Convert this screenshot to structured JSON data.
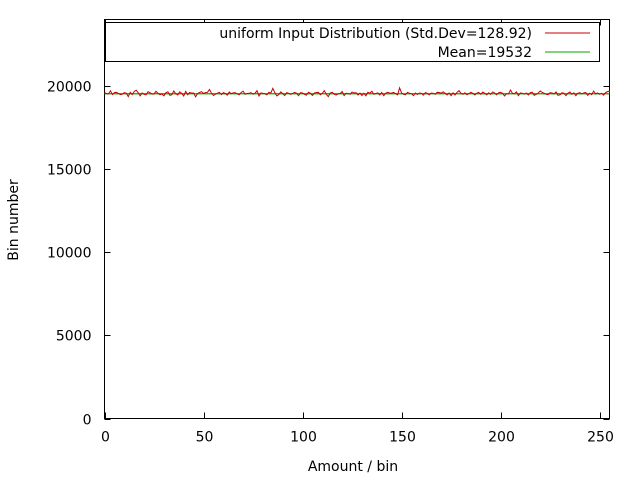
{
  "chart_data": {
    "type": "line",
    "title": "",
    "xlabel": "Amount / bin",
    "ylabel": "Bin number",
    "xlim": [
      0,
      255
    ],
    "ylim": [
      0,
      24000
    ],
    "x_ticks": [
      0,
      50,
      100,
      150,
      200,
      250
    ],
    "y_ticks": [
      0,
      5000,
      10000,
      15000,
      20000
    ],
    "x_tick_labels": [
      "0",
      "50",
      "100",
      "150",
      "200",
      "250"
    ],
    "y_tick_labels": [
      "0",
      "5000",
      "10000",
      "15000",
      "20000"
    ],
    "grid": false,
    "legend_position": "top",
    "series": [
      {
        "name": "uniform Input Distribution (Std.Dev=128.92)",
        "color": "#cc0000",
        "values": [
          19605,
          19540,
          19520,
          19710,
          19490,
          19600,
          19620,
          19550,
          19480,
          19510,
          19600,
          19570,
          19360,
          19620,
          19480,
          19660,
          19750,
          19600,
          19410,
          19580,
          19500,
          19470,
          19660,
          19590,
          19510,
          19520,
          19680,
          19560,
          19480,
          19520,
          19410,
          19590,
          19650,
          19440,
          19470,
          19700,
          19530,
          19460,
          19650,
          19550,
          19400,
          19680,
          19470,
          19610,
          19570,
          19580,
          19350,
          19550,
          19610,
          19660,
          19550,
          19600,
          19620,
          19790,
          19570,
          19430,
          19510,
          19570,
          19620,
          19480,
          19600,
          19550,
          19450,
          19640,
          19540,
          19590,
          19600,
          19520,
          19470,
          19610,
          19690,
          19500,
          19550,
          19560,
          19600,
          19510,
          19560,
          19720,
          19400,
          19580,
          19560,
          19540,
          19470,
          19620,
          19580,
          19860,
          19600,
          19400,
          19480,
          19650,
          19540,
          19420,
          19600,
          19560,
          19500,
          19550,
          19610,
          19560,
          19420,
          19600,
          19580,
          19490,
          19450,
          19620,
          19560,
          19430,
          19580,
          19600,
          19620,
          19470,
          19560,
          19720,
          19500,
          19360,
          19580,
          19620,
          19500,
          19460,
          19530,
          19540,
          19670,
          19420,
          19560,
          19550,
          19500,
          19640,
          19580,
          19600,
          19460,
          19570,
          19430,
          19560,
          19410,
          19620,
          19570,
          19680,
          19500,
          19550,
          19580,
          19460,
          19610,
          19420,
          19560,
          19620,
          19570,
          19570,
          19610,
          19540,
          19470,
          19890,
          19580,
          19500,
          19470,
          19620,
          19560,
          19530,
          19420,
          19580,
          19490,
          19580,
          19560,
          19450,
          19600,
          19550,
          19470,
          19580,
          19560,
          19500,
          19620,
          19610,
          19570,
          19650,
          19560,
          19460,
          19580,
          19420,
          19590,
          19460,
          19610,
          19720,
          19560,
          19500,
          19590,
          19480,
          19540,
          19620,
          19560,
          19460,
          19570,
          19610,
          19500,
          19640,
          19560,
          19470,
          19590,
          19500,
          19640,
          19580,
          19470,
          19590,
          19620,
          19560,
          19400,
          19540,
          19520,
          19760,
          19560,
          19530,
          19650,
          19420,
          19580,
          19560,
          19510,
          19580,
          19460,
          19600,
          19630,
          19440,
          19500,
          19580,
          19700,
          19620,
          19560,
          19500,
          19480,
          19600,
          19580,
          19520,
          19640,
          19440,
          19470,
          19600,
          19560,
          19420,
          19560,
          19640,
          19500,
          19590,
          19420,
          19560,
          19600,
          19520,
          19580,
          19610,
          19440,
          19560,
          19480,
          19690,
          19520,
          19580,
          19500,
          19560,
          19450,
          19600,
          19660,
          19700,
          19440,
          19480,
          19620,
          19450,
          19700,
          19450,
          19520
        ]
      },
      {
        "name": "Mean=19532",
        "color": "#00aa00",
        "constant": 19532
      }
    ]
  }
}
